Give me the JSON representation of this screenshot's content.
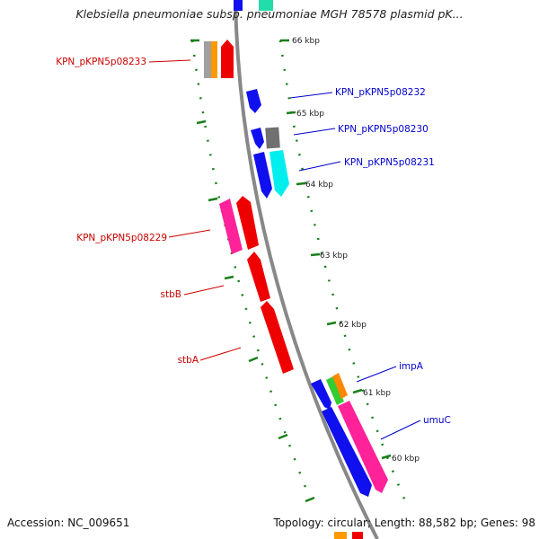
{
  "title": "Klebsiella pneumoniae subsp. pneumoniae MGH 78578 plasmid pK...",
  "footer": {
    "accession": "Accession: NC_009651",
    "summary": "Topology: circular; Length: 88,582 bp; Genes: 98"
  },
  "colors": {
    "backbone": "#888888",
    "tick": "#1a7f1a",
    "label_reverse": "#cc0000",
    "label_forward": "#0000cc"
  },
  "scale_labels": [
    "66 kbp",
    "65 kbp",
    "64 kbp",
    "63 kbp",
    "62 kbp",
    "61 kbp",
    "60 kbp"
  ],
  "gene_labels": [
    {
      "text": "KPN_pKPN5p08233",
      "strand": "reverse"
    },
    {
      "text": "KPN_pKPN5p08232",
      "strand": "forward"
    },
    {
      "text": "KPN_pKPN5p08230",
      "strand": "forward"
    },
    {
      "text": "KPN_pKPN5p08231",
      "strand": "forward"
    },
    {
      "text": "KPN_pKPN5p08229",
      "strand": "reverse"
    },
    {
      "text": "stbB",
      "strand": "reverse"
    },
    {
      "text": "stbA",
      "strand": "reverse"
    },
    {
      "text": "impA",
      "strand": "forward"
    },
    {
      "text": "umuC",
      "strand": "forward"
    }
  ]
}
